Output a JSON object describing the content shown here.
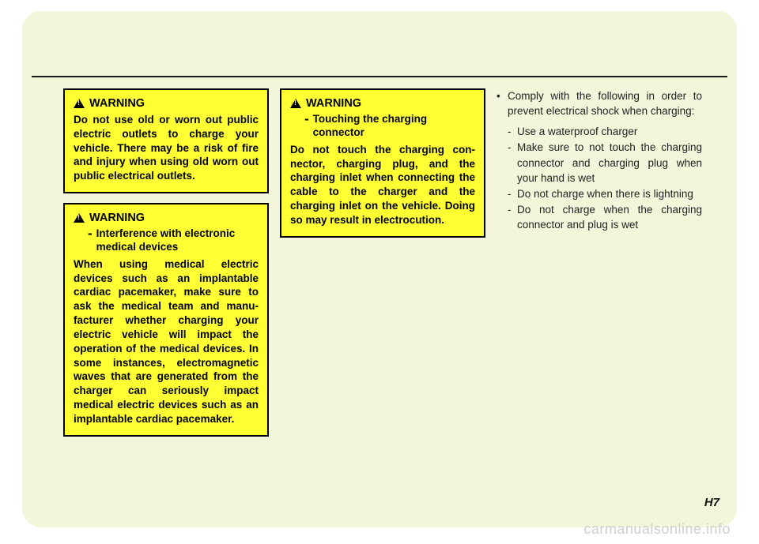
{
  "page": {
    "bg_color": "#f3f6db",
    "rule_color": "#1a1a1a",
    "warning_bg": "#ffff33",
    "warning_border": "#000000",
    "page_number": "H7",
    "watermark": "carmanualsonline.info"
  },
  "col1": {
    "box1": {
      "title": "WARNING",
      "body": "Do not use old or worn out pub­lic electric outlets to charge your vehicle. There may be a risk of fire and injury when using old worn out public elec­trical outlets."
    },
    "box2": {
      "title": "WARNING",
      "subdash": "-",
      "subtitle": "Interference with electron­ic medical devices",
      "body": "When using medical electric devices such as an implantable cardiac pacemaker, make sure to ask the medical team and manu­facturer whether charging your electric vehicle will impact the operation of the medical devices. In some instances, elec­tromagnetic waves that are gen­erated from the charger can seri­ously impact medical electric devices such as an implantable cardiac pacemaker."
    }
  },
  "col2": {
    "box1": {
      "title": "WARNING",
      "subdash": "-",
      "subtitle": "Touching the charging connector",
      "body": "Do not touch the charging con­nector, charging plug, and the charging inlet when connecting the cable to the charger and the charging inlet on the vehicle. Doing so may result in electro­cution."
    }
  },
  "col3": {
    "bullet_dot": "•",
    "bullet_text": "Comply with the following in order to prevent electrical shock when charging:",
    "subs": [
      "Use a waterproof charger",
      "Make sure to not touch the charg­ing connector and charging plug when your hand is wet",
      "Do not charge when there is light­ning",
      "Do not charge when the charging connector and plug is wet"
    ],
    "dash": "-"
  }
}
